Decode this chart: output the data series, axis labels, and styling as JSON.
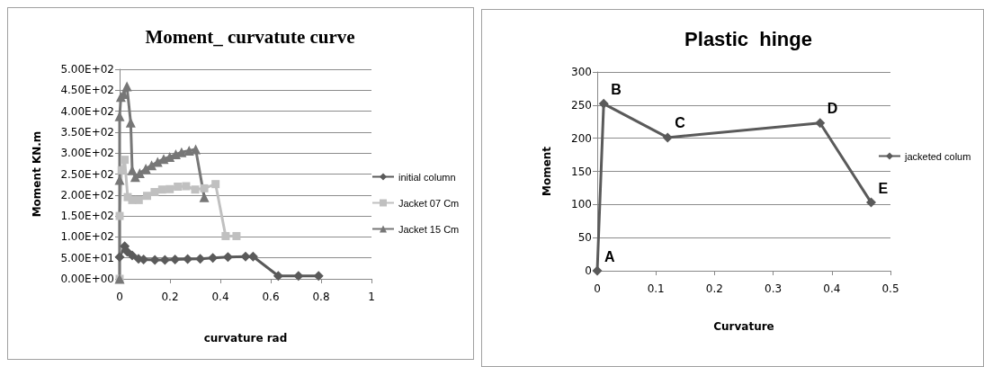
{
  "chart_data": [
    {
      "type": "line",
      "title": "Moment_ curvatute curve",
      "xlabel": "curvature rad",
      "ylabel": "Moment KN.m",
      "xlim": [
        0,
        1
      ],
      "xticks": [
        0,
        0.2,
        0.4,
        0.6,
        0.8,
        1
      ],
      "ylim": [
        0,
        500
      ],
      "yticks": [
        {
          "value": 0,
          "label": "0.00E+00"
        },
        {
          "value": 50,
          "label": "5.00E+01"
        },
        {
          "value": 100,
          "label": "1.00E+02"
        },
        {
          "value": 150,
          "label": "1.50E+02"
        },
        {
          "value": 200,
          "label": "2.00E+02"
        },
        {
          "value": 250,
          "label": "2.50E+02"
        },
        {
          "value": 300,
          "label": "3.00E+02"
        },
        {
          "value": 350,
          "label": "3.50E+02"
        },
        {
          "value": 400,
          "label": "4.00E+02"
        },
        {
          "value": 450,
          "label": "4.50E+02"
        },
        {
          "value": 500,
          "label": "5.00E+02"
        }
      ],
      "grid": "y",
      "legend": "right",
      "series": [
        {
          "name": "initial column",
          "color": "#5a5a5a",
          "marker": "diamond",
          "x": [
            0,
            0.02,
            0.03,
            0.05,
            0.075,
            0.095,
            0.14,
            0.18,
            0.22,
            0.27,
            0.32,
            0.37,
            0.43,
            0.5,
            0.53,
            0.63,
            0.71,
            0.79
          ],
          "values": [
            52,
            78,
            65,
            56,
            48,
            46,
            45,
            45,
            46,
            47,
            48,
            50,
            52,
            53,
            53,
            7,
            7,
            7
          ]
        },
        {
          "name": "Jacket 07 Cm",
          "color": "#c0c0c0",
          "marker": "square",
          "x": [
            0,
            0,
            0.008,
            0.02,
            0.032,
            0.05,
            0.076,
            0.109,
            0.139,
            0.169,
            0.199,
            0.231,
            0.264,
            0.3,
            0.336,
            0.381,
            0.421,
            0.464
          ],
          "values": [
            0,
            150,
            259,
            284,
            195,
            188,
            188,
            198,
            207,
            213,
            214,
            220,
            221,
            213,
            216,
            226,
            102,
            102
          ]
        },
        {
          "name": "Jacket 15 Cm",
          "color": "#777777",
          "marker": "triangle",
          "x": [
            0,
            0,
            0,
            0.005,
            0.016,
            0.029,
            0.044,
            0.05,
            0.062,
            0.08,
            0.104,
            0.127,
            0.151,
            0.175,
            0.199,
            0.223,
            0.246,
            0.276,
            0.302,
            0.336
          ],
          "values": [
            0,
            236,
            388,
            434,
            441,
            459,
            373,
            259,
            243,
            252,
            263,
            271,
            279,
            286,
            291,
            297,
            302,
            306,
            309,
            195
          ]
        }
      ]
    },
    {
      "type": "line",
      "title": "Plastic  hinge",
      "xlabel": "Curvature",
      "ylabel": "Moment",
      "xlim": [
        0,
        0.5
      ],
      "xticks": [
        0,
        0.1,
        0.2,
        0.3,
        0.4,
        0.5
      ],
      "ylim": [
        0,
        300
      ],
      "yticks": [
        0,
        50,
        100,
        150,
        200,
        250,
        300
      ],
      "grid": "y",
      "legend": "right",
      "marker": "diamond",
      "series": [
        {
          "name": "jacketed colum",
          "color": "#5a5a5a",
          "x": [
            0,
            0.011,
            0.12,
            0.38,
            0.467
          ],
          "values": [
            0,
            252,
            201,
            223,
            103
          ]
        }
      ],
      "annotations": [
        {
          "text": "A",
          "x": 0,
          "y": 0
        },
        {
          "text": "B",
          "x": 0.011,
          "y": 252
        },
        {
          "text": "C",
          "x": 0.12,
          "y": 201
        },
        {
          "text": "D",
          "x": 0.38,
          "y": 223
        },
        {
          "text": "E",
          "x": 0.467,
          "y": 103
        }
      ]
    }
  ]
}
